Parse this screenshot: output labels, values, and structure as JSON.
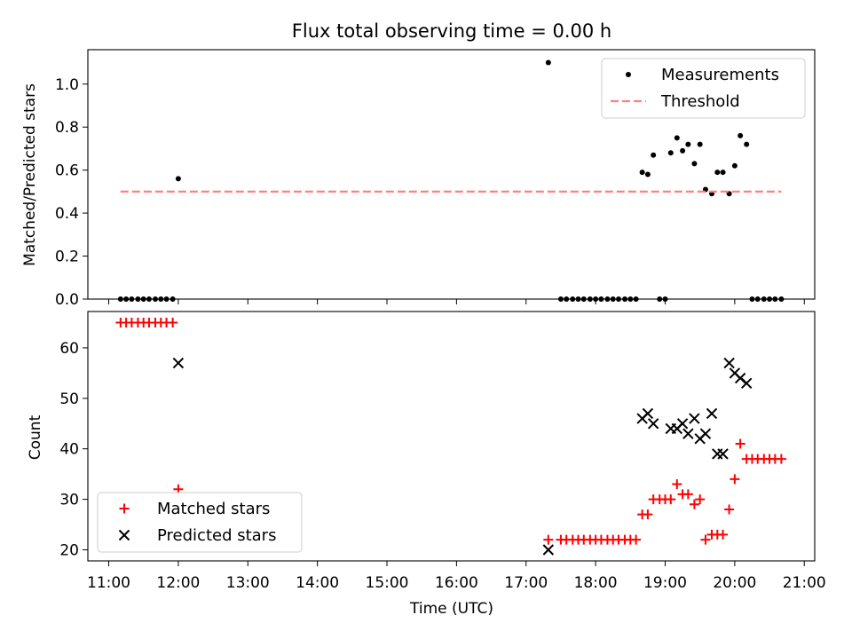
{
  "chart_data": {
    "title": "Flux total observing time = 0.00 h",
    "xlabel": "Time (UTC)",
    "x_unit": "hours",
    "x_ticks": [
      {
        "value": 11,
        "label": "11:00"
      },
      {
        "value": 12,
        "label": "12:00"
      },
      {
        "value": 13,
        "label": "13:00"
      },
      {
        "value": 14,
        "label": "14:00"
      },
      {
        "value": 15,
        "label": "15:00"
      },
      {
        "value": 16,
        "label": "16:00"
      },
      {
        "value": 17,
        "label": "17:00"
      },
      {
        "value": 18,
        "label": "18:00"
      },
      {
        "value": 19,
        "label": "19:00"
      },
      {
        "value": 20,
        "label": "20:00"
      },
      {
        "value": 21,
        "label": "21:00"
      }
    ],
    "xlim": [
      10.7,
      21.15
    ],
    "panels": [
      {
        "type": "scatter",
        "ylabel": "Matched/Predicted stars",
        "ylim": [
          0,
          1.16
        ],
        "y_ticks": [
          {
            "value": 0.0,
            "label": "0.0"
          },
          {
            "value": 0.2,
            "label": "0.2"
          },
          {
            "value": 0.4,
            "label": "0.4"
          },
          {
            "value": 0.6,
            "label": "0.6"
          },
          {
            "value": 0.8,
            "label": "0.8"
          },
          {
            "value": 1.0,
            "label": "1.0"
          }
        ],
        "legend_position": "top-right",
        "series": [
          {
            "name": "Measurements",
            "marker": "dot",
            "color": "#000000",
            "points": [
              [
                11.17,
                0
              ],
              [
                11.25,
                0
              ],
              [
                11.33,
                0
              ],
              [
                11.42,
                0
              ],
              [
                11.5,
                0
              ],
              [
                11.58,
                0
              ],
              [
                11.67,
                0
              ],
              [
                11.75,
                0
              ],
              [
                11.83,
                0
              ],
              [
                11.92,
                0
              ],
              [
                12.0,
                0.56
              ],
              [
                17.32,
                1.1
              ],
              [
                17.5,
                0
              ],
              [
                17.58,
                0
              ],
              [
                17.67,
                0
              ],
              [
                17.75,
                0
              ],
              [
                17.83,
                0
              ],
              [
                17.92,
                0
              ],
              [
                18.0,
                0
              ],
              [
                18.08,
                0
              ],
              [
                18.17,
                0
              ],
              [
                18.25,
                0
              ],
              [
                18.33,
                0
              ],
              [
                18.42,
                0
              ],
              [
                18.5,
                0
              ],
              [
                18.58,
                0
              ],
              [
                18.67,
                0.59
              ],
              [
                18.75,
                0.58
              ],
              [
                18.83,
                0.67
              ],
              [
                18.92,
                0
              ],
              [
                19.0,
                0
              ],
              [
                19.08,
                0.68
              ],
              [
                19.17,
                0.75
              ],
              [
                19.25,
                0.69
              ],
              [
                19.33,
                0.72
              ],
              [
                19.42,
                0.63
              ],
              [
                19.5,
                0.72
              ],
              [
                19.58,
                0.51
              ],
              [
                19.67,
                0.49
              ],
              [
                19.75,
                0.59
              ],
              [
                19.83,
                0.59
              ],
              [
                19.92,
                0.49
              ],
              [
                20.0,
                0.62
              ],
              [
                20.08,
                0.76
              ],
              [
                20.17,
                0.72
              ],
              [
                20.25,
                0
              ],
              [
                20.33,
                0
              ],
              [
                20.42,
                0
              ],
              [
                20.5,
                0
              ],
              [
                20.58,
                0
              ],
              [
                20.67,
                0
              ]
            ]
          },
          {
            "name": "Threshold",
            "type": "line",
            "style": "dashed",
            "color": "#ff8080",
            "points": [
              [
                11.17,
                0.5
              ],
              [
                20.67,
                0.5
              ]
            ]
          }
        ]
      },
      {
        "type": "scatter",
        "ylabel": "Count",
        "ylim": [
          17.8,
          67.2
        ],
        "y_ticks": [
          {
            "value": 20,
            "label": "20"
          },
          {
            "value": 30,
            "label": "30"
          },
          {
            "value": 40,
            "label": "40"
          },
          {
            "value": 50,
            "label": "50"
          },
          {
            "value": 60,
            "label": "60"
          }
        ],
        "legend_position": "bottom-left",
        "series": [
          {
            "name": "Matched stars",
            "marker": "plus",
            "color": "#ff0000",
            "points": [
              [
                11.17,
                65
              ],
              [
                11.25,
                65
              ],
              [
                11.33,
                65
              ],
              [
                11.42,
                65
              ],
              [
                11.5,
                65
              ],
              [
                11.58,
                65
              ],
              [
                11.67,
                65
              ],
              [
                11.75,
                65
              ],
              [
                11.83,
                65
              ],
              [
                11.92,
                65
              ],
              [
                12.0,
                32
              ],
              [
                17.32,
                22
              ],
              [
                17.5,
                22
              ],
              [
                17.58,
                22
              ],
              [
                17.67,
                22
              ],
              [
                17.75,
                22
              ],
              [
                17.83,
                22
              ],
              [
                17.92,
                22
              ],
              [
                18.0,
                22
              ],
              [
                18.08,
                22
              ],
              [
                18.17,
                22
              ],
              [
                18.25,
                22
              ],
              [
                18.33,
                22
              ],
              [
                18.42,
                22
              ],
              [
                18.5,
                22
              ],
              [
                18.58,
                22
              ],
              [
                18.67,
                27
              ],
              [
                18.75,
                27
              ],
              [
                18.83,
                30
              ],
              [
                18.92,
                30
              ],
              [
                19.0,
                30
              ],
              [
                19.08,
                30
              ],
              [
                19.17,
                33
              ],
              [
                19.25,
                31
              ],
              [
                19.33,
                31
              ],
              [
                19.42,
                29
              ],
              [
                19.5,
                30
              ],
              [
                19.58,
                22
              ],
              [
                19.67,
                23
              ],
              [
                19.75,
                23
              ],
              [
                19.83,
                23
              ],
              [
                19.92,
                28
              ],
              [
                20.0,
                34
              ],
              [
                20.08,
                41
              ],
              [
                20.17,
                38
              ],
              [
                20.25,
                38
              ],
              [
                20.33,
                38
              ],
              [
                20.42,
                38
              ],
              [
                20.5,
                38
              ],
              [
                20.58,
                38
              ],
              [
                20.67,
                38
              ]
            ]
          },
          {
            "name": "Predicted stars",
            "marker": "x",
            "color": "#000000",
            "points": [
              [
                12.0,
                57
              ],
              [
                17.32,
                20
              ],
              [
                18.67,
                46
              ],
              [
                18.75,
                47
              ],
              [
                18.83,
                45
              ],
              [
                19.08,
                44
              ],
              [
                19.17,
                44
              ],
              [
                19.25,
                45
              ],
              [
                19.33,
                43
              ],
              [
                19.42,
                46
              ],
              [
                19.5,
                42
              ],
              [
                19.58,
                43
              ],
              [
                19.67,
                47
              ],
              [
                19.75,
                39
              ],
              [
                19.83,
                39
              ],
              [
                19.92,
                57
              ],
              [
                20.0,
                55
              ],
              [
                20.08,
                54
              ],
              [
                20.17,
                53
              ]
            ]
          }
        ]
      }
    ]
  }
}
